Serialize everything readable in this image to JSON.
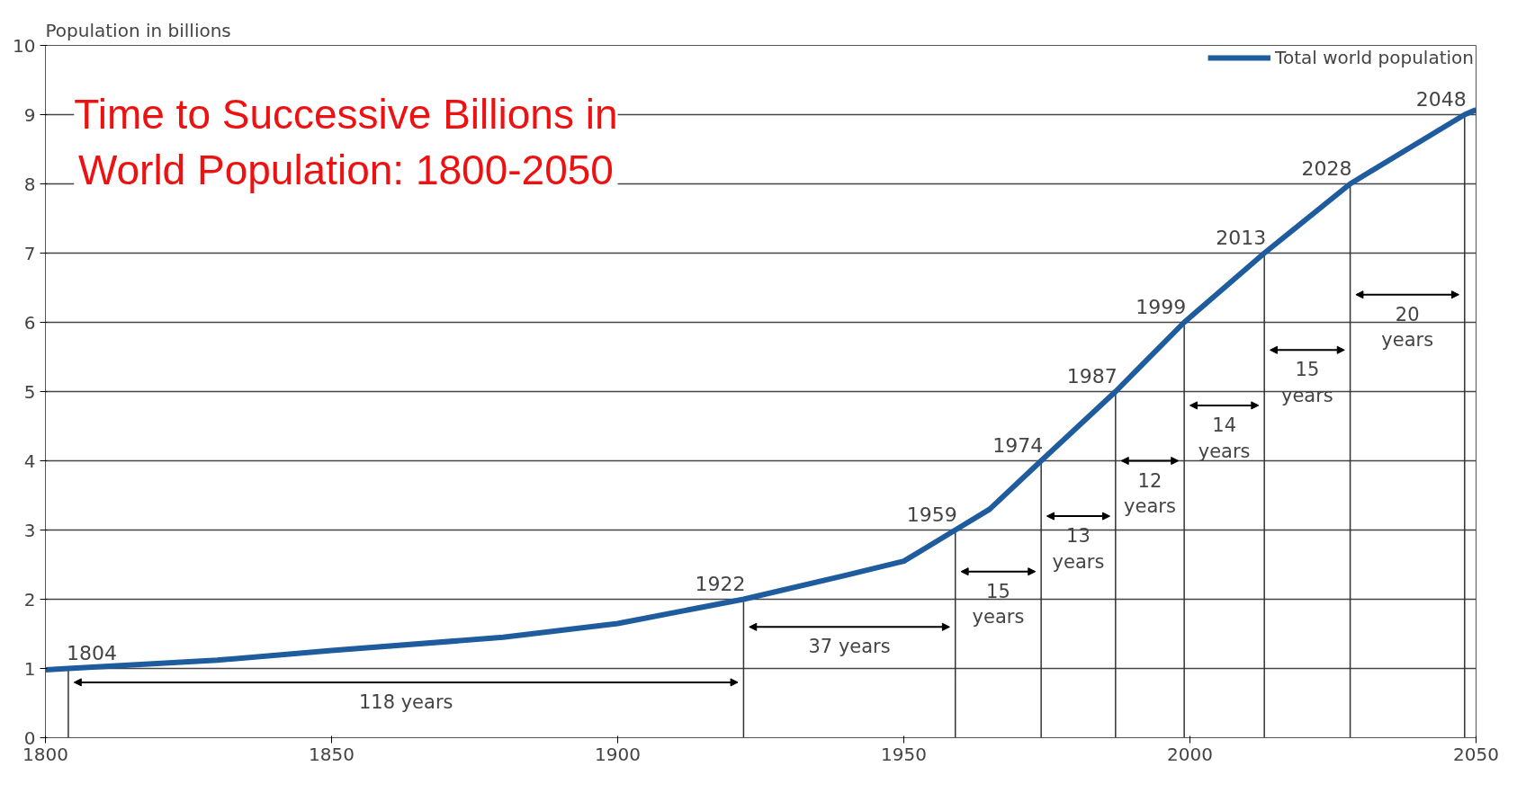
{
  "chart_data": {
    "type": "line",
    "title": "Time to Successive Billions in World Population: 1800-2050",
    "ylabel": "Population in billions",
    "x": [
      1800,
      1804,
      1830,
      1850,
      1880,
      1900,
      1922,
      1940,
      1950,
      1959,
      1965,
      1974,
      1987,
      1999,
      2013,
      2028,
      2040,
      2048,
      2050
    ],
    "series": [
      {
        "name": "Total world population",
        "color": "#1f5c9e",
        "values": [
          0.98,
          1.0,
          1.12,
          1.26,
          1.45,
          1.65,
          2.0,
          2.35,
          2.55,
          3.0,
          3.3,
          4.0,
          5.0,
          6.0,
          7.0,
          8.0,
          8.6,
          9.0,
          9.07
        ]
      }
    ],
    "xlim": [
      1800,
      2050
    ],
    "ylim": [
      0,
      10
    ],
    "xticks": [
      1800,
      1850,
      1900,
      1950,
      2000,
      2050
    ],
    "yticks": [
      0,
      1,
      2,
      3,
      4,
      5,
      6,
      7,
      8,
      9,
      10
    ],
    "grid": "y",
    "legend": "top right",
    "line_style": "solid",
    "ref_lines": [
      {
        "axis": "x",
        "value": 1804,
        "color": "#333333"
      },
      {
        "axis": "x",
        "value": 1922,
        "color": "#333333"
      },
      {
        "axis": "x",
        "value": 1959,
        "color": "#333333"
      },
      {
        "axis": "x",
        "value": 1974,
        "color": "#333333"
      },
      {
        "axis": "x",
        "value": 1987,
        "color": "#333333"
      },
      {
        "axis": "x",
        "value": 1999,
        "color": "#333333"
      },
      {
        "axis": "x",
        "value": 2013,
        "color": "#333333"
      },
      {
        "axis": "x",
        "value": 2028,
        "color": "#333333"
      },
      {
        "axis": "x",
        "value": 2048,
        "color": "#333333"
      }
    ],
    "annotations": [
      {
        "text": "1804",
        "x": 1804,
        "y": 1
      },
      {
        "text": "1922",
        "x": 1922,
        "y": 2
      },
      {
        "text": "1959",
        "x": 1959,
        "y": 3
      },
      {
        "text": "1974",
        "x": 1974,
        "y": 4
      },
      {
        "text": "1987",
        "x": 1987,
        "y": 5
      },
      {
        "text": "1999",
        "x": 1999,
        "y": 6
      },
      {
        "text": "2013",
        "x": 2013,
        "y": 7
      },
      {
        "text": "2028",
        "x": 2028,
        "y": 8
      },
      {
        "text": "2048",
        "x": 2048,
        "y": 9
      },
      "118 years",
      "37 years",
      "15\nyears",
      "13\nyears",
      "12\nyears",
      "14\nyears",
      "15\nyears",
      "20\nyears"
    ]
  }
}
